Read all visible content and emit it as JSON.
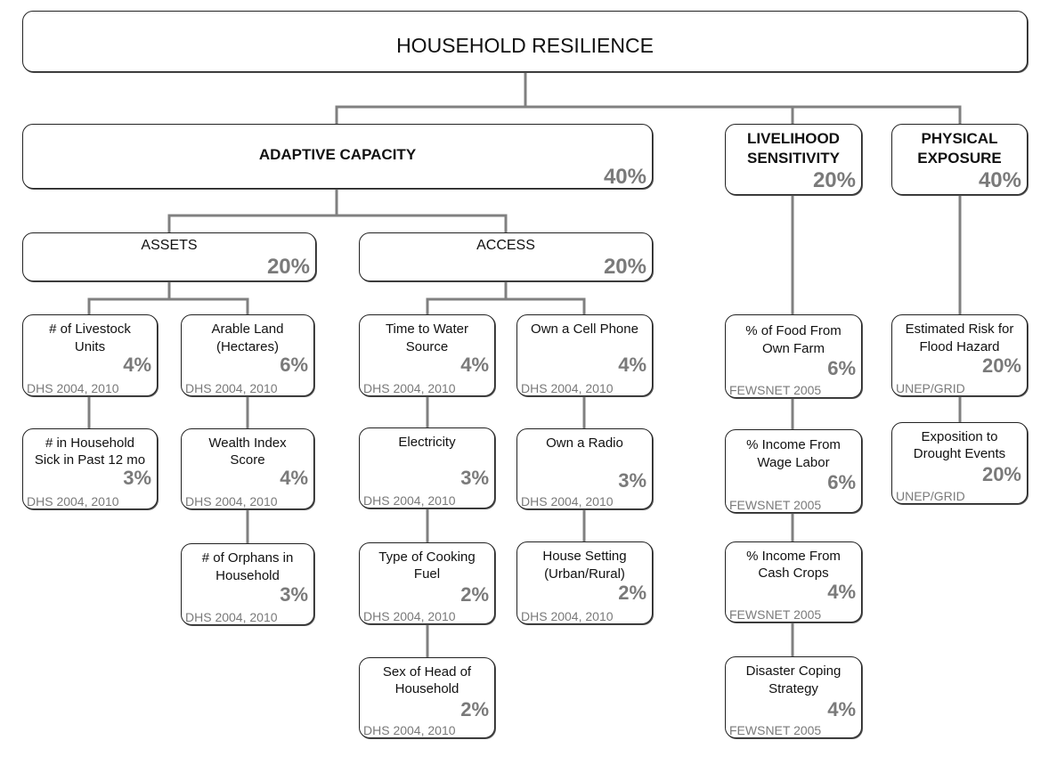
{
  "root": {
    "title": "HOUSEHOLD RESILIENCE"
  },
  "adaptive": {
    "title": "ADAPTIVE CAPACITY",
    "weight": "40%"
  },
  "livelihood": {
    "title_line1": "LIVELIHOOD",
    "title_line2": "SENSITIVITY",
    "weight": "20%"
  },
  "physical": {
    "title_line1": "PHYSICAL",
    "title_line2": "EXPOSURE",
    "weight": "40%"
  },
  "assets": {
    "title": "ASSETS",
    "weight": "20%"
  },
  "access": {
    "title": "ACCESS",
    "weight": "20%"
  },
  "indicators": {
    "livestock": {
      "line1": "# of Livestock",
      "line2": "Units",
      "weight": "4%",
      "source": "DHS 2004, 2010"
    },
    "sick": {
      "line1": "# in Household",
      "line2": "Sick in Past 12 mo",
      "weight": "3%",
      "source": "DHS 2004, 2010"
    },
    "arable": {
      "line1": "Arable Land",
      "line2": "(Hectares)",
      "weight": "6%",
      "source": "DHS 2004, 2010"
    },
    "wealth": {
      "line1": "Wealth Index",
      "line2": "Score",
      "weight": "4%",
      "source": "DHS 2004, 2010"
    },
    "orphans": {
      "line1": "# of Orphans in",
      "line2": "Household",
      "weight": "3%",
      "source": "DHS 2004, 2010"
    },
    "water": {
      "line1": "Time to Water",
      "line2": "Source",
      "weight": "4%",
      "source": "DHS 2004, 2010"
    },
    "electricity": {
      "line1": "Electricity",
      "line2": "",
      "weight": "3%",
      "source": "DHS 2004, 2010"
    },
    "fuel": {
      "line1": "Type of Cooking",
      "line2": "Fuel",
      "weight": "2%",
      "source": "DHS 2004, 2010"
    },
    "sexhead": {
      "line1": "Sex of Head of",
      "line2": "Household",
      "weight": "2%",
      "source": "DHS 2004, 2010"
    },
    "cellphone": {
      "line1": "Own a Cell Phone",
      "line2": "",
      "weight": "4%",
      "source": "DHS 2004, 2010"
    },
    "radio": {
      "line1": "Own a Radio",
      "line2": "",
      "weight": "3%",
      "source": "DHS 2004, 2010"
    },
    "house": {
      "line1": "House Setting",
      "line2": "(Urban/Rural)",
      "weight": "2%",
      "source": "DHS 2004, 2010"
    },
    "food": {
      "line1": "% of Food From",
      "line2": "Own Farm",
      "weight": "6%",
      "source": "FEWSNET 2005"
    },
    "wage": {
      "line1": "% Income From",
      "line2": "Wage Labor",
      "weight": "6%",
      "source": "FEWSNET 2005"
    },
    "cash": {
      "line1": "% Income From",
      "line2": "Cash Crops",
      "weight": "4%",
      "source": "FEWSNET 2005"
    },
    "disaster": {
      "line1": "Disaster Coping",
      "line2": "Strategy",
      "weight": "4%",
      "source": "FEWSNET 2005"
    },
    "flood": {
      "line1": "Estimated Risk for",
      "line2": "Flood Hazard",
      "weight": "20%",
      "source": "UNEP/GRID"
    },
    "drought": {
      "line1": "Exposition to",
      "line2": "Drought Events",
      "weight": "20%",
      "source": "UNEP/GRID"
    }
  }
}
